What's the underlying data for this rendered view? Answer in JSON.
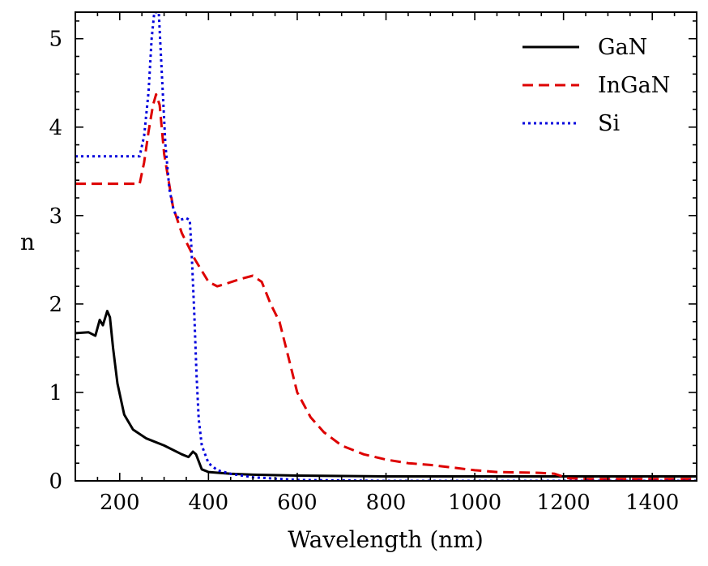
{
  "chart_data": {
    "type": "line",
    "title": "",
    "xlabel": "Wavelength (nm)",
    "ylabel": "n",
    "xlim": [
      100,
      1500
    ],
    "ylim": [
      0,
      5.3
    ],
    "xticks": [
      200,
      400,
      600,
      800,
      1000,
      1200,
      1400
    ],
    "yticks": [
      0,
      1,
      2,
      3,
      4,
      5
    ],
    "x_minor_step": 50,
    "y_minor_step": 0.2,
    "grid": false,
    "legend_position": "top-right",
    "series": [
      {
        "name": "GaN",
        "color": "#000000",
        "style": "solid",
        "points": [
          [
            100,
            1.67
          ],
          [
            130,
            1.68
          ],
          [
            145,
            1.64
          ],
          [
            155,
            1.82
          ],
          [
            162,
            1.76
          ],
          [
            172,
            1.92
          ],
          [
            178,
            1.85
          ],
          [
            185,
            1.5
          ],
          [
            195,
            1.1
          ],
          [
            210,
            0.75
          ],
          [
            230,
            0.58
          ],
          [
            260,
            0.48
          ],
          [
            300,
            0.4
          ],
          [
            340,
            0.3
          ],
          [
            355,
            0.27
          ],
          [
            365,
            0.33
          ],
          [
            372,
            0.3
          ],
          [
            385,
            0.13
          ],
          [
            400,
            0.1
          ],
          [
            450,
            0.08
          ],
          [
            500,
            0.07
          ],
          [
            600,
            0.06
          ],
          [
            800,
            0.05
          ],
          [
            1000,
            0.05
          ],
          [
            1200,
            0.05
          ],
          [
            1500,
            0.05
          ]
        ]
      },
      {
        "name": "InGaN",
        "color": "#dd0000",
        "style": "dashed",
        "points": [
          [
            100,
            3.36
          ],
          [
            245,
            3.36
          ],
          [
            255,
            3.6
          ],
          [
            265,
            3.95
          ],
          [
            275,
            4.25
          ],
          [
            282,
            4.37
          ],
          [
            290,
            4.25
          ],
          [
            300,
            3.7
          ],
          [
            320,
            3.1
          ],
          [
            340,
            2.8
          ],
          [
            370,
            2.5
          ],
          [
            400,
            2.25
          ],
          [
            420,
            2.2
          ],
          [
            440,
            2.23
          ],
          [
            470,
            2.28
          ],
          [
            500,
            2.32
          ],
          [
            520,
            2.25
          ],
          [
            540,
            2.0
          ],
          [
            560,
            1.8
          ],
          [
            580,
            1.4
          ],
          [
            600,
            1.0
          ],
          [
            630,
            0.72
          ],
          [
            660,
            0.55
          ],
          [
            700,
            0.4
          ],
          [
            750,
            0.3
          ],
          [
            800,
            0.24
          ],
          [
            850,
            0.2
          ],
          [
            900,
            0.18
          ],
          [
            950,
            0.15
          ],
          [
            1000,
            0.12
          ],
          [
            1050,
            0.1
          ],
          [
            1150,
            0.09
          ],
          [
            1180,
            0.08
          ],
          [
            1210,
            0.03
          ],
          [
            1250,
            0.02
          ],
          [
            1500,
            0.02
          ]
        ]
      },
      {
        "name": "Si",
        "color": "#0000dd",
        "style": "dotted",
        "points": [
          [
            100,
            3.67
          ],
          [
            245,
            3.67
          ],
          [
            255,
            3.9
          ],
          [
            265,
            4.4
          ],
          [
            272,
            5.0
          ],
          [
            278,
            5.3
          ],
          [
            288,
            5.3
          ],
          [
            295,
            4.6
          ],
          [
            303,
            3.8
          ],
          [
            312,
            3.3
          ],
          [
            322,
            3.05
          ],
          [
            335,
            2.95
          ],
          [
            350,
            2.97
          ],
          [
            358,
            2.95
          ],
          [
            362,
            2.6
          ],
          [
            368,
            1.9
          ],
          [
            373,
            1.2
          ],
          [
            378,
            0.7
          ],
          [
            385,
            0.4
          ],
          [
            400,
            0.2
          ],
          [
            420,
            0.12
          ],
          [
            450,
            0.08
          ],
          [
            500,
            0.04
          ],
          [
            600,
            0.01
          ],
          [
            800,
            0.0
          ],
          [
            1500,
            0.0
          ]
        ]
      }
    ]
  }
}
